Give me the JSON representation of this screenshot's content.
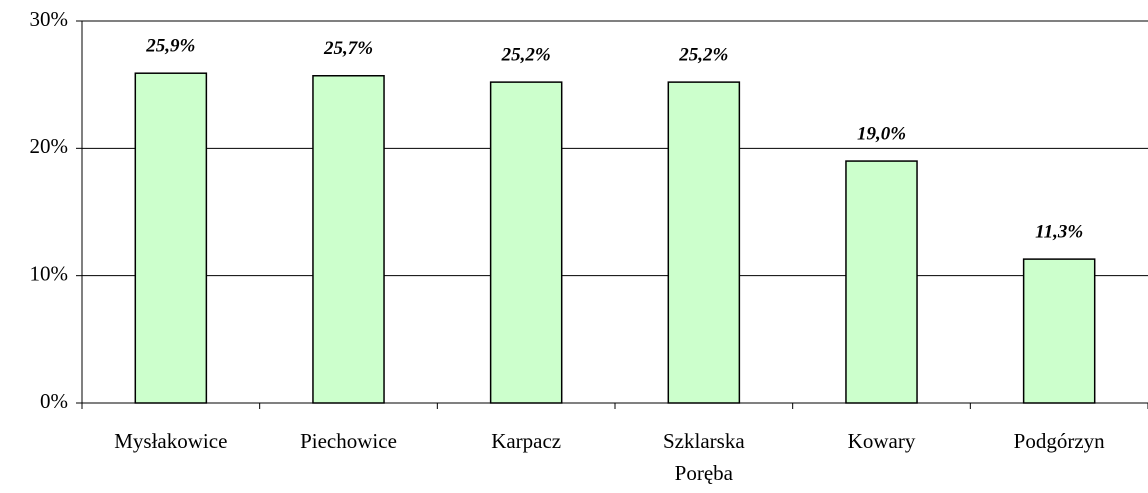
{
  "chart_data": {
    "type": "bar",
    "categories": [
      "Mysłakowice",
      "Piechowice",
      "Karpacz",
      "Szklarska Poręba",
      "Kowary",
      "Podgórzyn"
    ],
    "values": [
      25.9,
      25.7,
      25.2,
      25.2,
      19.0,
      11.3
    ],
    "value_labels": [
      "25,9%",
      "25,7%",
      "25,2%",
      "25,2%",
      "19,0%",
      "11,3%"
    ],
    "color": "#ccffcc",
    "ylim": [
      0,
      30
    ],
    "yticks": [
      {
        "value": 0,
        "label": "0%"
      },
      {
        "value": 10,
        "label": "10%"
      },
      {
        "value": 20,
        "label": "20%"
      },
      {
        "value": 30,
        "label": "30%"
      }
    ],
    "grid": true
  }
}
